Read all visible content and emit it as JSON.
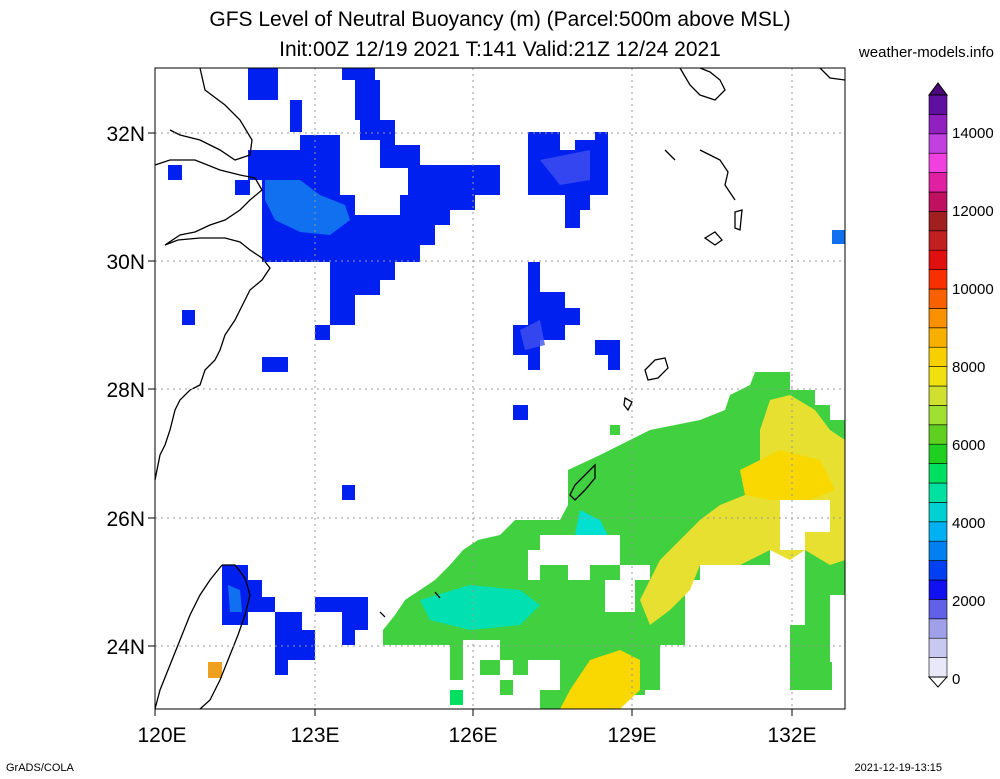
{
  "header": {
    "title_line1": "GFS Level of Neutral Buoyancy (m) (Parcel:500m above MSL)",
    "title_line2": "Init:00Z 12/19 2021 T:141 Valid:21Z 12/24 2021",
    "credit": "weather-models.info"
  },
  "footer": {
    "left": "GrADS/COLA",
    "right": "2021-12-19-13:15"
  },
  "map": {
    "lon_range": [
      120,
      133
    ],
    "lat_range": [
      23,
      33
    ],
    "lat_labels": [
      "32N",
      "30N",
      "28N",
      "26N",
      "24N"
    ],
    "lon_labels": [
      "120E",
      "123E",
      "126E",
      "129E",
      "132E"
    ]
  },
  "colorbar": {
    "labels": [
      "14000",
      "12000",
      "10000",
      "8000",
      "6000",
      "4000",
      "2000",
      "0"
    ],
    "colors": [
      "#e8e8f8",
      "#c8c8f0",
      "#a0a0e8",
      "#6060e8",
      "#1010f0",
      "#0040f0",
      "#0080f0",
      "#00b0f0",
      "#00d0d0",
      "#00e0a0",
      "#00e060",
      "#20d020",
      "#60d020",
      "#a0e030",
      "#d0e030",
      "#f0e010",
      "#f8d000",
      "#f8b000",
      "#f89000",
      "#f86000",
      "#f83000",
      "#e01010",
      "#c02020",
      "#a02020",
      "#c01060",
      "#e020a0",
      "#f040e0",
      "#c040e0",
      "#9020c0",
      "#6010a0"
    ]
  }
}
